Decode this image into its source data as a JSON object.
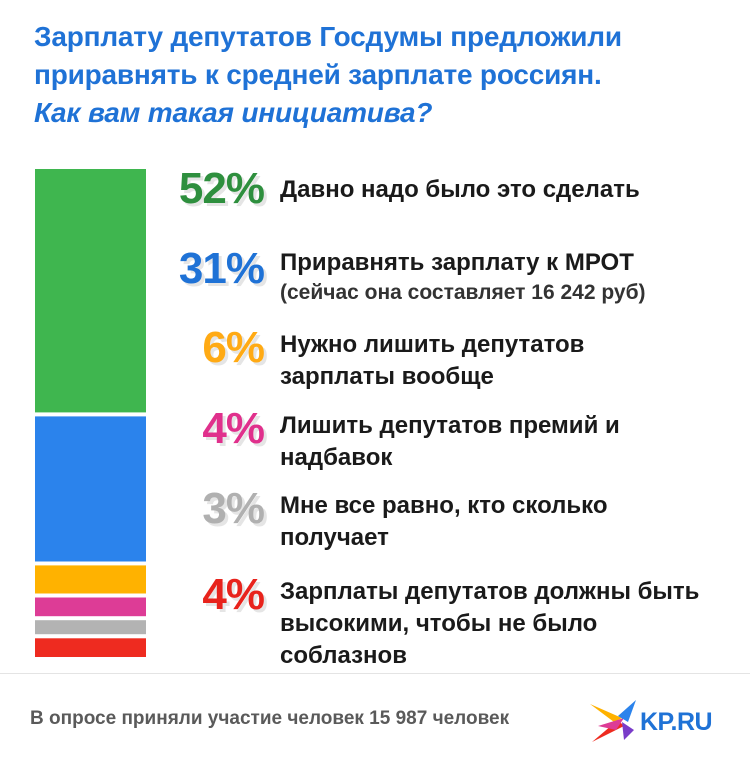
{
  "title": {
    "line1": "Зарплату депутатов Госдумы предложили",
    "line2": "приравнять к средней зарплате россиян.",
    "question": "Как вам такая инициатива?"
  },
  "chart_data": {
    "type": "bar",
    "stacked": true,
    "orientation": "vertical",
    "categories": [
      "Давно надо было это сделать",
      "Приравнять зарплату к МРОТ (сейчас она составляет 16 242 руб)",
      "Нужно лишить депутатов зарплаты вообще",
      "Лишить депутатов премий и надбавок",
      "Мне все равно, кто сколько получает",
      "Зарплаты депутатов должны быть высокими, чтобы не было соблазнов"
    ],
    "values": [
      52,
      31,
      6,
      4,
      3,
      4
    ],
    "colors": [
      "#3fb64f",
      "#2b83ec",
      "#ffb200",
      "#dd3c96",
      "#b3b3b3",
      "#ee2b20"
    ],
    "unit": "%"
  },
  "items": [
    {
      "pct": "52%",
      "label": "Давно надо было это сделать",
      "sub": "",
      "color": "#2e8f3e"
    },
    {
      "pct": "31%",
      "label": "Приравнять зарплату к МРОТ",
      "sub": "(сейчас она составляет 16 242 руб)",
      "color": "#1f72d6"
    },
    {
      "pct": "6%",
      "label": "Нужно лишить депутатов зарплаты вообще",
      "sub": "",
      "color": "#ffaa14"
    },
    {
      "pct": "4%",
      "label": "Лишить депутатов премий и надбавок",
      "sub": "",
      "color": "#e0308c"
    },
    {
      "pct": "3%",
      "label": "Мне все равно, кто сколько получает",
      "sub": "",
      "color": "#b0b0b0"
    },
    {
      "pct": "4%",
      "label": "Зарплаты депутатов должны быть высокими, чтобы не было соблазнов",
      "sub": "",
      "color": "#e8231c"
    }
  ],
  "footer": "В опросе приняли участие человек 15 987 человек",
  "logo": {
    "text": "KP.RU",
    "icon": "kp-bird-logo"
  }
}
